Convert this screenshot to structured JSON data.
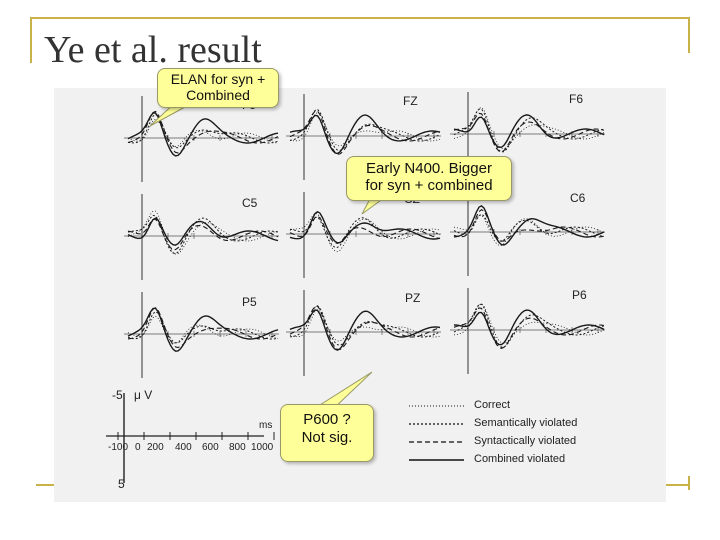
{
  "slide": {
    "title": "Ye et al. result"
  },
  "figure": {
    "electrodes": [
      "F5",
      "FZ",
      "F6",
      "C5",
      "CZ",
      "C6",
      "P5",
      "PZ",
      "P6"
    ],
    "amplitude_top": "-5",
    "amplitude_unit": "μ V",
    "amplitude_bottom": "5",
    "time_unit": "ms",
    "time_ticks": [
      "-100",
      "0",
      "200",
      "400",
      "600",
      "800",
      "1000"
    ],
    "legend": [
      {
        "label": "Correct",
        "style": "dotted-thin"
      },
      {
        "label": "Semantically violated",
        "style": "dotted"
      },
      {
        "label": "Syntactically violated",
        "style": "dashed"
      },
      {
        "label": "Combined violated",
        "style": "solid"
      }
    ]
  },
  "callouts": {
    "elan": {
      "line1": "ELAN for syn +",
      "line2": "Combined"
    },
    "n400": {
      "line1": "Early N400. Bigger",
      "line2": "for syn + combined"
    },
    "p600": {
      "line1": "P600 ?",
      "line2": "Not sig."
    }
  },
  "colors": {
    "accent": "#c9b24a",
    "callout_fill": "#ffff99",
    "figure_bg": "#f1f1f1"
  }
}
